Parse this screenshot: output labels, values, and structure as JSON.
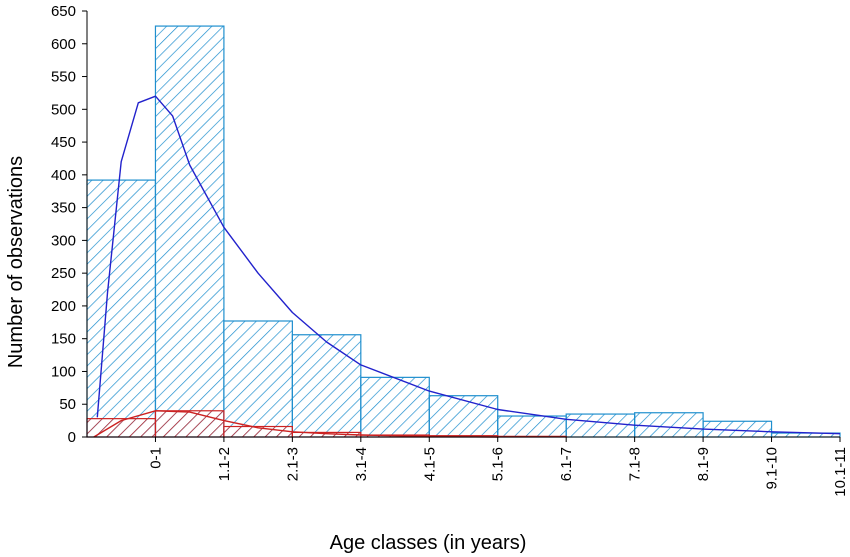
{
  "chart_data": {
    "type": "bar",
    "title": "",
    "xlabel": "Age classes (in years)",
    "ylabel": "Number of observations",
    "ylim": [
      0,
      650
    ],
    "yticks": [
      0,
      50,
      100,
      150,
      200,
      250,
      300,
      350,
      400,
      450,
      500,
      550,
      600,
      650
    ],
    "categories": [
      "0-1",
      "1.1-2",
      "2.1-3",
      "3.1-4",
      "4.1-5",
      "5.1-6",
      "6.1-7",
      "7.1-8",
      "8.1-9",
      "9.1-10",
      "10.1-11"
    ],
    "series": [
      {
        "color": "#1f8fce",
        "values": [
          392,
          627,
          177,
          156,
          91,
          63,
          32,
          35,
          37,
          24,
          6
        ]
      },
      {
        "color": "#cc2222",
        "values": [
          28,
          40,
          16,
          7,
          3,
          2,
          1,
          0,
          0,
          0,
          0
        ]
      }
    ],
    "fit_curves": [
      {
        "color": "#2222cc",
        "x": [
          0.15,
          0.3,
          0.5,
          0.75,
          1.0,
          1.25,
          1.5,
          2.0,
          2.5,
          3.0,
          3.5,
          4.0,
          5.0,
          6.0,
          7.0,
          8.0,
          9.0,
          10.0,
          11.0
        ],
        "y": [
          30,
          220,
          420,
          510,
          520,
          490,
          415,
          320,
          250,
          190,
          145,
          110,
          70,
          42,
          27,
          18,
          12,
          8,
          5
        ]
      },
      {
        "color": "#cc2222",
        "x": [
          0.1,
          0.5,
          1.0,
          1.5,
          2.0,
          2.5,
          3.0,
          3.5,
          4.0,
          5.0,
          6.0
        ],
        "y": [
          0,
          25,
          40,
          38,
          25,
          14,
          8,
          5,
          3,
          1,
          0
        ]
      }
    ],
    "grid": false,
    "legend": "none"
  }
}
